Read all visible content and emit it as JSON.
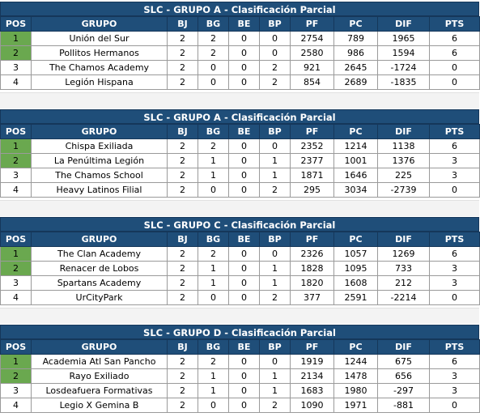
{
  "headers": [
    "POS",
    "GRUPO",
    "BJ",
    "BG",
    "BE",
    "BP",
    "PF",
    "PC",
    "DIF",
    "PTS"
  ],
  "groups": [
    {
      "title": "SLC - GRUPO A - Clasificación Parcial",
      "rows": [
        {
          "pos": "1",
          "team": "Unión del Sur",
          "bj": "2",
          "bg": "2",
          "be": "0",
          "bp": "0",
          "pf": "2754",
          "pc": "789",
          "dif": "1965",
          "pts": "6"
        },
        {
          "pos": "2",
          "team": "Pollitos Hermanos",
          "bj": "2",
          "bg": "2",
          "be": "0",
          "bp": "0",
          "pf": "2580",
          "pc": "986",
          "dif": "1594",
          "pts": "6"
        },
        {
          "pos": "3",
          "team": "The Chamos Academy",
          "bj": "2",
          "bg": "0",
          "be": "0",
          "bp": "2",
          "pf": "921",
          "pc": "2645",
          "dif": "-1724",
          "pts": "0"
        },
        {
          "pos": "4",
          "team": "Legión Hispana",
          "bj": "2",
          "bg": "0",
          "be": "0",
          "bp": "2",
          "pf": "854",
          "pc": "2689",
          "dif": "-1835",
          "pts": "0"
        }
      ]
    },
    {
      "title": "SLC - GRUPO A - Clasificación Parcial",
      "rows": [
        {
          "pos": "1",
          "team": "Chispa Exiliada",
          "bj": "2",
          "bg": "2",
          "be": "0",
          "bp": "0",
          "pf": "2352",
          "pc": "1214",
          "dif": "1138",
          "pts": "6"
        },
        {
          "pos": "2",
          "team": "La Penúltima Legión",
          "bj": "2",
          "bg": "1",
          "be": "0",
          "bp": "1",
          "pf": "2377",
          "pc": "1001",
          "dif": "1376",
          "pts": "3"
        },
        {
          "pos": "3",
          "team": "The Chamos School",
          "bj": "2",
          "bg": "1",
          "be": "0",
          "bp": "1",
          "pf": "1871",
          "pc": "1646",
          "dif": "225",
          "pts": "3"
        },
        {
          "pos": "4",
          "team": "Heavy Latinos Filial",
          "bj": "2",
          "bg": "0",
          "be": "0",
          "bp": "2",
          "pf": "295",
          "pc": "3034",
          "dif": "-2739",
          "pts": "0"
        }
      ]
    },
    {
      "title": "SLC - GRUPO C - Clasificación Parcial",
      "rows": [
        {
          "pos": "1",
          "team": "The Clan Academy",
          "bj": "2",
          "bg": "2",
          "be": "0",
          "bp": "0",
          "pf": "2326",
          "pc": "1057",
          "dif": "1269",
          "pts": "6"
        },
        {
          "pos": "2",
          "team": "Renacer de Lobos",
          "bj": "2",
          "bg": "1",
          "be": "0",
          "bp": "1",
          "pf": "1828",
          "pc": "1095",
          "dif": "733",
          "pts": "3"
        },
        {
          "pos": "3",
          "team": "Spartans Academy",
          "bj": "2",
          "bg": "1",
          "be": "0",
          "bp": "1",
          "pf": "1820",
          "pc": "1608",
          "dif": "212",
          "pts": "3"
        },
        {
          "pos": "4",
          "team": "UrCityPark",
          "bj": "2",
          "bg": "0",
          "be": "0",
          "bp": "2",
          "pf": "377",
          "pc": "2591",
          "dif": "-2214",
          "pts": "0"
        }
      ]
    },
    {
      "title": "SLC - GRUPO D - Clasificación Parcial",
      "rows": [
        {
          "pos": "1",
          "team": "Academia Atl San Pancho",
          "bj": "2",
          "bg": "2",
          "be": "0",
          "bp": "0",
          "pf": "1919",
          "pc": "1244",
          "dif": "675",
          "pts": "6"
        },
        {
          "pos": "2",
          "team": "Rayo Exiliado",
          "bj": "2",
          "bg": "1",
          "be": "0",
          "bp": "1",
          "pf": "2134",
          "pc": "1478",
          "dif": "656",
          "pts": "3"
        },
        {
          "pos": "3",
          "team": "Losdeafuera Formativas",
          "bj": "2",
          "bg": "1",
          "be": "0",
          "bp": "1",
          "pf": "1683",
          "pc": "1980",
          "dif": "-297",
          "pts": "3"
        },
        {
          "pos": "4",
          "team": "Legio X Gemina B",
          "bj": "2",
          "bg": "0",
          "be": "0",
          "bp": "2",
          "pf": "1090",
          "pc": "1971",
          "dif": "-881",
          "pts": "0"
        }
      ]
    }
  ],
  "colors": {
    "header_bg": "#1f4e79",
    "qualified_pos_bg": "#6aa84f",
    "gap_bg": "#f3f3f3"
  }
}
